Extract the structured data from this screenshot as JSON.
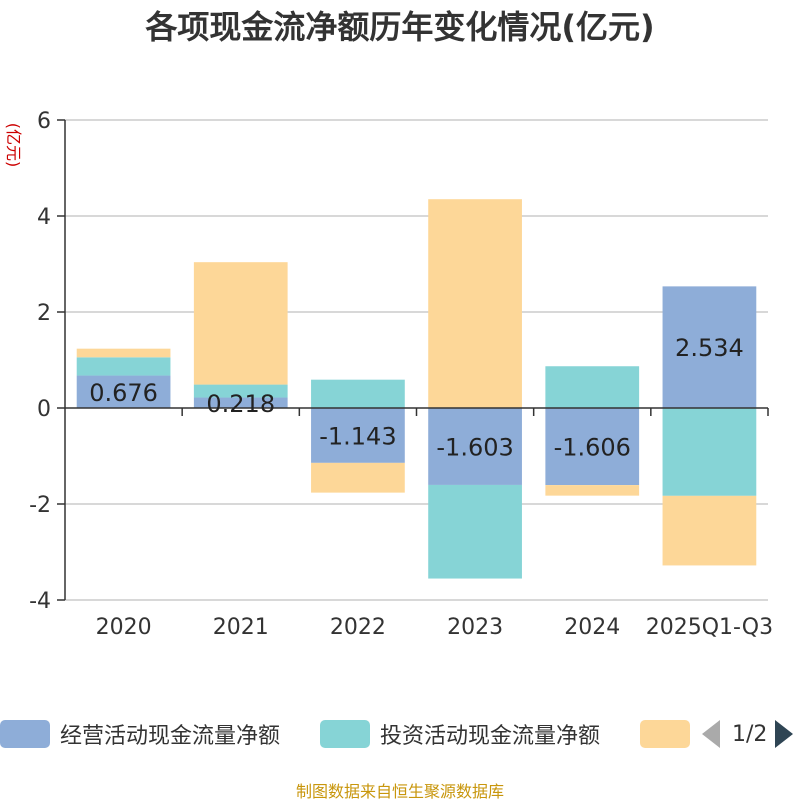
{
  "chart_data": {
    "type": "bar",
    "stacked": true,
    "title": "各项现金流净额历年变化情况(亿元)",
    "ylabel": "(亿元)",
    "ylim": [
      -4,
      6
    ],
    "yticks": [
      -4,
      -2,
      0,
      2,
      4,
      6
    ],
    "categories": [
      "2020",
      "2021",
      "2022",
      "2023",
      "2024",
      "2025Q1-Q3"
    ],
    "series": [
      {
        "name": "经营活动现金流量净额",
        "color": "#8eadd8",
        "values": [
          0.676,
          0.218,
          -1.143,
          -1.603,
          -1.606,
          2.534
        ],
        "labels": [
          "0.676",
          "0.218",
          "-1.143",
          "-1.603",
          "-1.606",
          "2.534"
        ]
      },
      {
        "name": "投资活动现金流量净额",
        "color": "#86d4d6",
        "values": [
          0.38,
          0.27,
          0.59,
          -1.95,
          0.87,
          -1.83
        ]
      },
      {
        "name": "",
        "color": "#fdd798",
        "values": [
          0.18,
          2.55,
          -0.62,
          4.35,
          -0.22,
          -1.45
        ]
      }
    ]
  },
  "legend": {
    "items": [
      {
        "label": "经营活动现金流量净额"
      },
      {
        "label": "投资活动现金流量净额"
      },
      {
        "label": ""
      }
    ],
    "page_text": "1/2"
  },
  "source_note": "制图数据来自恒生聚源数据库",
  "colors": {
    "axis": "#333333",
    "grid": "#cccccc",
    "ylabel": "#cc0000"
  }
}
